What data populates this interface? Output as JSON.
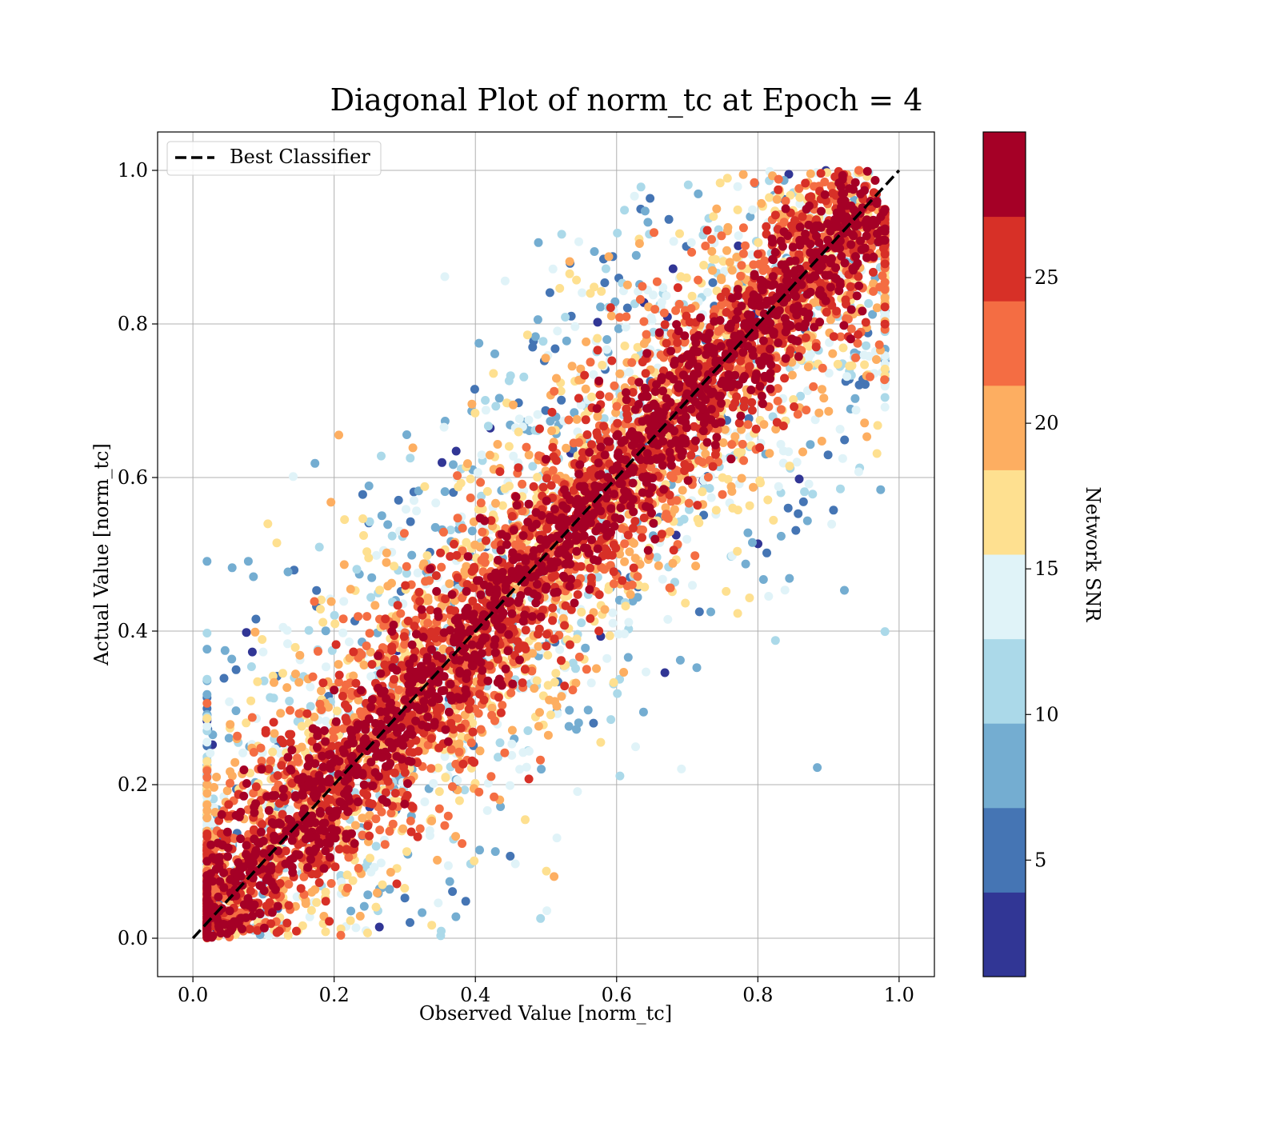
{
  "chart_data": {
    "type": "scatter",
    "title": "Diagonal Plot of norm_tc at Epoch = 4",
    "xlabel": "Observed Value [norm_tc]",
    "ylabel": "Actual Value [norm_tc]",
    "xlim": [
      -0.05,
      1.05
    ],
    "ylim": [
      -0.05,
      1.05
    ],
    "xticks": [
      "0.0",
      "0.2",
      "0.4",
      "0.6",
      "0.8",
      "1.0"
    ],
    "yticks": [
      "0.0",
      "0.2",
      "0.4",
      "0.6",
      "0.8",
      "1.0"
    ],
    "grid": true,
    "legend": {
      "placement": "top-left",
      "entries": [
        "Best Classifier"
      ]
    },
    "reference_line": {
      "name": "Best Classifier",
      "style": "dashed",
      "color": "#000000",
      "x": [
        0,
        1
      ],
      "y": [
        0,
        1
      ]
    },
    "colorbar": {
      "label": "Network SNR",
      "range": [
        1,
        30
      ],
      "boundaries": [
        1,
        3.9,
        6.8,
        9.7,
        12.6,
        15.5,
        18.4,
        21.3,
        24.2,
        27.1,
        30
      ],
      "colors": [
        "#313695",
        "#4575b4",
        "#74add1",
        "#abd9e9",
        "#e0f3f8",
        "#fee090",
        "#fdae61",
        "#f46d43",
        "#d73027",
        "#a50026"
      ],
      "ticks": [
        5,
        10,
        15,
        20,
        25
      ],
      "tick_labels": [
        "5",
        "10",
        "15",
        "20",
        "25"
      ]
    },
    "color_by": "Network SNR",
    "distribution": {
      "description_points": 0,
      "band_core_halfwidth_high_snr": 0.07,
      "snr_color_map": "RdYlBu_r"
    }
  }
}
